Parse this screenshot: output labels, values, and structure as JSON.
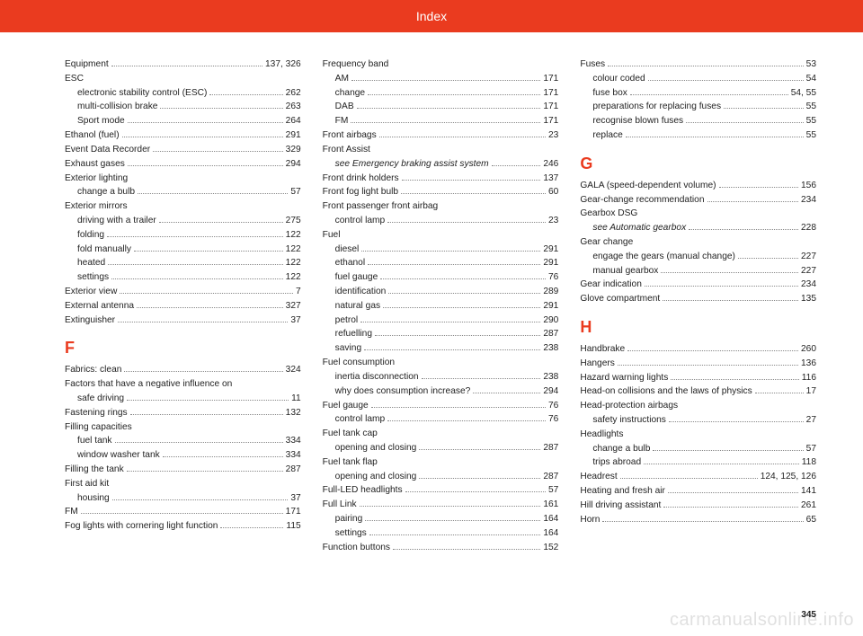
{
  "header": {
    "title": "Index"
  },
  "page_number": "345",
  "watermark": "carmanualsonline.info",
  "columns": [
    {
      "items": [
        {
          "type": "entry",
          "label": "Equipment",
          "page": "137, 326"
        },
        {
          "type": "group",
          "label": "ESC"
        },
        {
          "type": "sub",
          "label": "electronic stability control (ESC)",
          "page": "262"
        },
        {
          "type": "sub",
          "label": "multi-collision brake",
          "page": "263"
        },
        {
          "type": "sub",
          "label": "Sport mode",
          "page": "264"
        },
        {
          "type": "entry",
          "label": "Ethanol (fuel)",
          "page": "291"
        },
        {
          "type": "entry",
          "label": "Event Data Recorder",
          "page": "329"
        },
        {
          "type": "entry",
          "label": "Exhaust gases",
          "page": "294"
        },
        {
          "type": "group",
          "label": "Exterior lighting"
        },
        {
          "type": "sub",
          "label": "change a bulb",
          "page": "57"
        },
        {
          "type": "group",
          "label": "Exterior mirrors"
        },
        {
          "type": "sub",
          "label": "driving with a trailer",
          "page": "275"
        },
        {
          "type": "sub",
          "label": "folding",
          "page": "122"
        },
        {
          "type": "sub",
          "label": "fold manually",
          "page": "122"
        },
        {
          "type": "sub",
          "label": "heated",
          "page": "122"
        },
        {
          "type": "sub",
          "label": "settings",
          "page": "122"
        },
        {
          "type": "entry",
          "label": "Exterior view",
          "page": "7"
        },
        {
          "type": "entry",
          "label": "External antenna",
          "page": "327"
        },
        {
          "type": "entry",
          "label": "Extinguisher",
          "page": "37"
        },
        {
          "type": "letter",
          "label": "F"
        },
        {
          "type": "entry",
          "label": "Fabrics: clean",
          "page": "324"
        },
        {
          "type": "group",
          "label": "Factors that have a negative influence on"
        },
        {
          "type": "sub",
          "label": "safe driving",
          "page": "11"
        },
        {
          "type": "entry",
          "label": "Fastening rings",
          "page": "132"
        },
        {
          "type": "group",
          "label": "Filling capacities"
        },
        {
          "type": "sub",
          "label": "fuel tank",
          "page": "334"
        },
        {
          "type": "sub",
          "label": "window washer tank",
          "page": "334"
        },
        {
          "type": "entry",
          "label": "Filling the tank",
          "page": "287"
        },
        {
          "type": "group",
          "label": "First aid kit"
        },
        {
          "type": "sub",
          "label": "housing",
          "page": "37"
        },
        {
          "type": "entry",
          "label": "FM",
          "page": "171"
        },
        {
          "type": "entry",
          "label": "Fog lights with cornering light function",
          "page": "115"
        }
      ]
    },
    {
      "items": [
        {
          "type": "group",
          "label": "Frequency band"
        },
        {
          "type": "sub",
          "label": "AM",
          "page": "171"
        },
        {
          "type": "sub",
          "label": "change",
          "page": "171"
        },
        {
          "type": "sub",
          "label": "DAB",
          "page": "171"
        },
        {
          "type": "sub",
          "label": "FM",
          "page": "171"
        },
        {
          "type": "entry",
          "label": "Front airbags",
          "page": "23"
        },
        {
          "type": "group",
          "label": "Front Assist"
        },
        {
          "type": "sub",
          "label": "see Emergency braking assist system",
          "italic": true,
          "page": "246"
        },
        {
          "type": "entry",
          "label": "Front drink holders",
          "page": "137"
        },
        {
          "type": "entry",
          "label": "Front fog light bulb",
          "page": "60"
        },
        {
          "type": "group",
          "label": "Front passenger front airbag"
        },
        {
          "type": "sub",
          "label": "control lamp",
          "page": "23"
        },
        {
          "type": "group",
          "label": "Fuel"
        },
        {
          "type": "sub",
          "label": "diesel",
          "page": "291"
        },
        {
          "type": "sub",
          "label": "ethanol",
          "page": "291"
        },
        {
          "type": "sub",
          "label": "fuel gauge",
          "page": "76"
        },
        {
          "type": "sub",
          "label": "identification",
          "page": "289"
        },
        {
          "type": "sub",
          "label": "natural gas",
          "page": "291"
        },
        {
          "type": "sub",
          "label": "petrol",
          "page": "290"
        },
        {
          "type": "sub",
          "label": "refuelling",
          "page": "287"
        },
        {
          "type": "sub",
          "label": "saving",
          "page": "238"
        },
        {
          "type": "group",
          "label": "Fuel consumption"
        },
        {
          "type": "sub",
          "label": "inertia disconnection",
          "page": "238"
        },
        {
          "type": "sub",
          "label": "why does consumption increase?",
          "page": "294"
        },
        {
          "type": "entry",
          "label": "Fuel gauge",
          "page": "76"
        },
        {
          "type": "sub",
          "label": "control lamp",
          "page": "76"
        },
        {
          "type": "group",
          "label": "Fuel tank cap"
        },
        {
          "type": "sub",
          "label": "opening and closing",
          "page": "287"
        },
        {
          "type": "group",
          "label": "Fuel tank flap"
        },
        {
          "type": "sub",
          "label": "opening and closing",
          "page": "287"
        },
        {
          "type": "entry",
          "label": "Full-LED headlights",
          "page": "57"
        },
        {
          "type": "entry",
          "label": "Full Link",
          "page": "161"
        },
        {
          "type": "sub",
          "label": "pairing",
          "page": "164"
        },
        {
          "type": "sub",
          "label": "settings",
          "page": "164"
        },
        {
          "type": "entry",
          "label": "Function buttons",
          "page": "152"
        }
      ]
    },
    {
      "items": [
        {
          "type": "entry",
          "label": "Fuses",
          "page": "53"
        },
        {
          "type": "sub",
          "label": "colour coded",
          "page": "54"
        },
        {
          "type": "sub",
          "label": "fuse box",
          "page": "54, 55"
        },
        {
          "type": "sub",
          "label": "preparations for replacing fuses",
          "page": "55"
        },
        {
          "type": "sub",
          "label": "recognise blown fuses",
          "page": "55"
        },
        {
          "type": "sub",
          "label": "replace",
          "page": "55"
        },
        {
          "type": "letter",
          "label": "G"
        },
        {
          "type": "entry",
          "label": "GALA (speed-dependent volume)",
          "page": "156"
        },
        {
          "type": "entry",
          "label": "Gear-change recommendation",
          "page": "234"
        },
        {
          "type": "group",
          "label": "Gearbox DSG"
        },
        {
          "type": "sub",
          "label": "see Automatic gearbox",
          "italic": true,
          "page": "228"
        },
        {
          "type": "group",
          "label": "Gear change"
        },
        {
          "type": "sub",
          "label": "engage the gears (manual change)",
          "page": "227"
        },
        {
          "type": "sub",
          "label": "manual gearbox",
          "page": "227"
        },
        {
          "type": "entry",
          "label": "Gear indication",
          "page": "234"
        },
        {
          "type": "entry",
          "label": "Glove compartment",
          "page": "135"
        },
        {
          "type": "letter",
          "label": "H"
        },
        {
          "type": "entry",
          "label": "Handbrake",
          "page": "260"
        },
        {
          "type": "entry",
          "label": "Hangers",
          "page": "136"
        },
        {
          "type": "entry",
          "label": "Hazard warning lights",
          "page": "116"
        },
        {
          "type": "entry",
          "label": "Head-on collisions and the laws of physics",
          "page": "17"
        },
        {
          "type": "group",
          "label": "Head-protection airbags"
        },
        {
          "type": "sub",
          "label": "safety instructions",
          "page": "27"
        },
        {
          "type": "group",
          "label": "Headlights"
        },
        {
          "type": "sub",
          "label": "change a bulb",
          "page": "57"
        },
        {
          "type": "sub",
          "label": "trips abroad",
          "page": "118"
        },
        {
          "type": "entry",
          "label": "Headrest",
          "page": "124, 125, 126"
        },
        {
          "type": "entry",
          "label": "Heating and fresh air",
          "page": "141"
        },
        {
          "type": "entry",
          "label": "Hill driving assistant",
          "page": "261"
        },
        {
          "type": "entry",
          "label": "Horn",
          "page": "65"
        }
      ]
    }
  ]
}
